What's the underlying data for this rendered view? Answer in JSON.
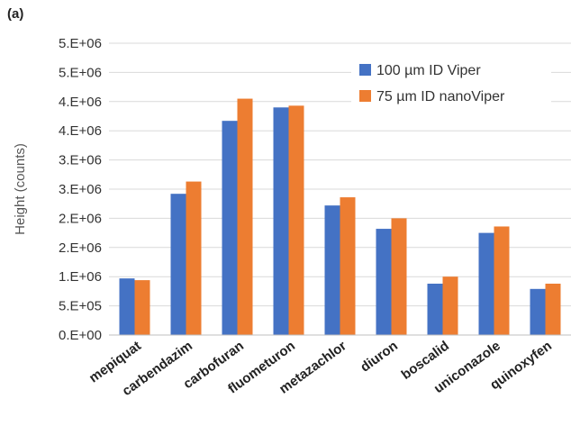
{
  "panel_label": "(a)",
  "colors": {
    "series1": "#4472c4",
    "series2": "#ed7d31",
    "grid": "#d9d9d9",
    "axis": "#bfbfbf"
  },
  "chart_data": {
    "type": "bar",
    "title": "",
    "xlabel": "",
    "ylabel": "Height (counts)",
    "ylim": [
      0,
      5000000
    ],
    "yticks": [
      0,
      500000,
      1000000,
      1500000,
      2000000,
      2500000,
      3000000,
      3500000,
      4000000,
      4500000,
      5000000
    ],
    "ytick_labels": [
      "0.E+00",
      "5.E+05",
      "1.E+06",
      "2.E+06",
      "2.E+06",
      "3.E+06",
      "3.E+06",
      "4.E+06",
      "4.E+06",
      "5.E+06",
      "5.E+06"
    ],
    "grid": true,
    "legend_position": "top-right",
    "categories": [
      "mepiquat",
      "carbendazim",
      "carbofuran",
      "fluometuron",
      "metazachlor",
      "diuron",
      "boscalid",
      "uniconazole",
      "quinoxyfen"
    ],
    "series": [
      {
        "name": "100 µm ID Viper",
        "values": [
          970000,
          2420000,
          3670000,
          3900000,
          2220000,
          1820000,
          880000,
          1750000,
          790000
        ]
      },
      {
        "name": "75 µm ID nanoViper",
        "values": [
          940000,
          2630000,
          4050000,
          3930000,
          2360000,
          2000000,
          1000000,
          1860000,
          880000
        ]
      }
    ]
  }
}
